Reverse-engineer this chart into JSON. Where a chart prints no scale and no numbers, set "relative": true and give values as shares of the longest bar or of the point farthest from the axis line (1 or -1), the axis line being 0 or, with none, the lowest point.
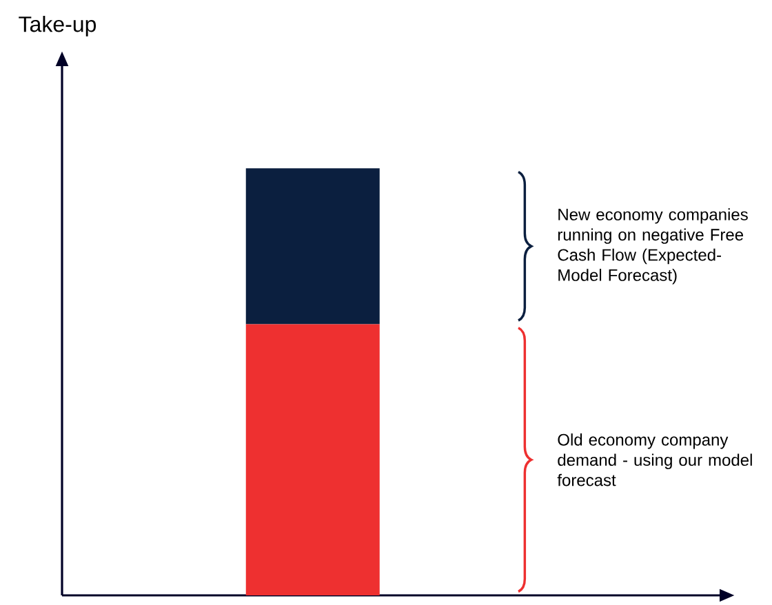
{
  "chart_data": {
    "type": "bar",
    "stacked": true,
    "relative": true,
    "categories": [
      null
    ],
    "series": [
      {
        "color": "#ee3030",
        "values": [
          0.635
        ]
      },
      {
        "color": "#0b1f3f",
        "values": [
          0.365
        ]
      }
    ],
    "annotations": [
      "Take-up",
      "New economy companies running on negative Free Cash Flow (Expected-Model Forecast)",
      "Old economy company demand - using our model forecast"
    ]
  }
}
